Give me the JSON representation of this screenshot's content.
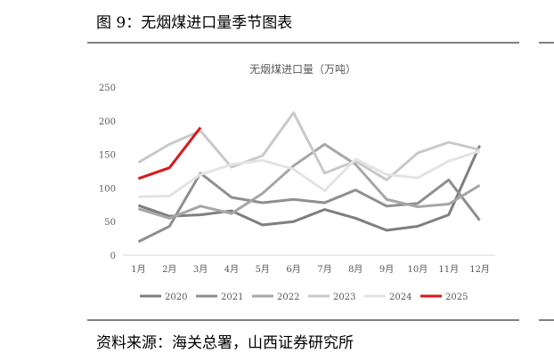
{
  "header": "图 9：无烟煤进口量季节图表",
  "source": "资料来源：海关总署，山西证券研究所",
  "chart_data": {
    "type": "line",
    "title": "无烟煤进口量（万吨）",
    "categories": [
      "1月",
      "2月",
      "3月",
      "4月",
      "5月",
      "6月",
      "7月",
      "8月",
      "9月",
      "10月",
      "11月",
      "12月"
    ],
    "ylim": [
      0,
      250
    ],
    "yticks": [
      0,
      50,
      100,
      150,
      200,
      250
    ],
    "grid": false,
    "series": [
      {
        "name": "2020",
        "color": "#7f7f7f",
        "values": [
          74,
          58,
          60,
          66,
          45,
          50,
          68,
          55,
          37,
          43,
          60,
          163
        ]
      },
      {
        "name": "2021",
        "color": "#8f8f8f",
        "values": [
          20,
          43,
          122,
          86,
          78,
          83,
          78,
          97,
          73,
          77,
          112,
          52
        ]
      },
      {
        "name": "2022",
        "color": "#a6a6a6",
        "values": [
          69,
          55,
          73,
          62,
          92,
          133,
          165,
          135,
          83,
          72,
          76,
          104
        ]
      },
      {
        "name": "2023",
        "color": "#c9c9c9",
        "values": [
          138,
          165,
          185,
          131,
          148,
          212,
          122,
          140,
          112,
          152,
          168,
          157
        ]
      },
      {
        "name": "2024",
        "color": "#e3e3e3",
        "values": [
          87,
          88,
          120,
          135,
          141,
          128,
          96,
          143,
          120,
          115,
          140,
          155
        ]
      },
      {
        "name": "2025",
        "color": "#d7191c",
        "values": [
          114,
          130,
          190,
          null,
          null,
          null,
          null,
          null,
          null,
          null,
          null,
          null
        ]
      }
    ]
  }
}
